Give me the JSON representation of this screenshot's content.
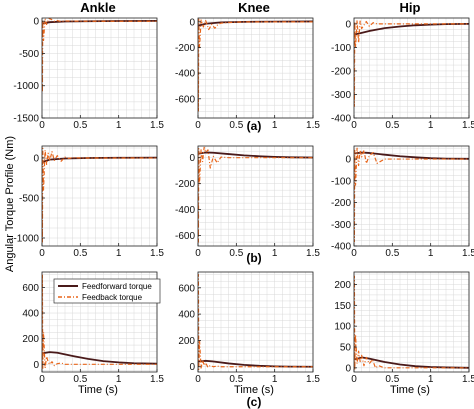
{
  "figure": {
    "ylabel": "Angular Torque Profile (Nm)",
    "xlabel": "Time (s)",
    "col_titles": [
      "Ankle",
      "Knee",
      "Hip"
    ],
    "row_labels": [
      "(a)",
      "(b)",
      "(c)"
    ],
    "legend": {
      "feedforward": "Feedforward torque",
      "feedback": "Feedback torque"
    },
    "colors": {
      "feedforward": "#4a1a1a",
      "feedback": "#e8651a",
      "grid": "#d9d9d9"
    }
  },
  "chart_data": [
    {
      "type": "line",
      "row": "(a)",
      "col": "Ankle",
      "xlim": [
        0,
        1.5
      ],
      "ylim": [
        -1500,
        50
      ],
      "xticks": [
        0,
        0.5,
        1,
        1.5
      ],
      "yticks": [
        0,
        -500,
        -1000,
        -1500
      ],
      "grid": true,
      "series": [
        {
          "name": "Feedforward torque",
          "x": [
            0,
            0.01,
            0.1,
            0.3,
            0.6,
            1.0,
            1.5
          ],
          "y": [
            -60,
            -35,
            -15,
            -4,
            0,
            3,
            5
          ]
        },
        {
          "name": "Feedback torque",
          "x": [
            0,
            0.005,
            0.01,
            0.02,
            0.04,
            0.06,
            0.09,
            0.12,
            0.16,
            0.2,
            0.25,
            0.3,
            0.4,
            0.6,
            1.0,
            1.5
          ],
          "y": [
            0,
            -1100,
            20,
            -300,
            40,
            -50,
            45,
            30,
            0,
            10,
            -5,
            5,
            2,
            0,
            0,
            0
          ]
        }
      ]
    },
    {
      "type": "line",
      "row": "(a)",
      "col": "Knee",
      "xlim": [
        0,
        1.5
      ],
      "ylim": [
        -750,
        30
      ],
      "xticks": [
        0,
        0.5,
        1,
        1.5
      ],
      "yticks": [
        0,
        -200,
        -400,
        -600
      ],
      "grid": true,
      "series": [
        {
          "name": "Feedforward torque",
          "x": [
            0,
            0.1,
            0.3,
            0.6,
            1.0,
            1.5
          ],
          "y": [
            -30,
            -15,
            -4,
            0,
            2,
            3
          ]
        },
        {
          "name": "Feedback torque",
          "x": [
            0,
            0.005,
            0.01,
            0.02,
            0.04,
            0.07,
            0.1,
            0.14,
            0.18,
            0.22,
            0.26,
            0.3,
            0.4,
            0.6,
            1.0,
            1.5
          ],
          "y": [
            0,
            -700,
            20,
            -200,
            15,
            -40,
            10,
            -60,
            -20,
            -50,
            -20,
            -10,
            -5,
            0,
            0,
            0
          ]
        }
      ]
    },
    {
      "type": "line",
      "row": "(a)",
      "col": "Hip",
      "xlim": [
        0,
        1.5
      ],
      "ylim": [
        -400,
        25
      ],
      "xticks": [
        0,
        0.5,
        1,
        1.5
      ],
      "yticks": [
        0,
        -100,
        -200,
        -300,
        -400
      ],
      "grid": true,
      "series": [
        {
          "name": "Feedforward torque",
          "x": [
            0,
            0.05,
            0.1,
            0.2,
            0.4,
            0.6,
            0.8,
            1.0,
            1.2,
            1.5
          ],
          "y": [
            -45,
            -42,
            -38,
            -30,
            -18,
            -11,
            -6,
            -3,
            -1,
            0
          ]
        },
        {
          "name": "Feedback torque",
          "x": [
            0,
            0.005,
            0.01,
            0.02,
            0.04,
            0.06,
            0.08,
            0.1,
            0.13,
            0.16,
            0.2,
            0.25,
            0.3,
            0.4,
            0.6,
            1.0,
            1.5
          ],
          "y": [
            0,
            -350,
            10,
            -100,
            15,
            -80,
            12,
            -20,
            -5,
            10,
            -10,
            5,
            0,
            0,
            0,
            0,
            0
          ]
        }
      ]
    },
    {
      "type": "line",
      "row": "(b)",
      "col": "Ankle",
      "xlim": [
        0,
        1.5
      ],
      "ylim": [
        -1100,
        150
      ],
      "xticks": [
        0,
        0.5,
        1,
        1.5
      ],
      "yticks": [
        0,
        -500,
        -1000
      ],
      "grid": true,
      "series": [
        {
          "name": "Feedforward torque",
          "x": [
            0,
            0.01,
            0.1,
            0.3,
            0.6,
            1.0,
            1.5
          ],
          "y": [
            -80,
            -50,
            -20,
            -6,
            0,
            3,
            5
          ]
        },
        {
          "name": "Feedback torque",
          "x": [
            0,
            0.005,
            0.01,
            0.02,
            0.04,
            0.06,
            0.08,
            0.1,
            0.13,
            0.16,
            0.2,
            0.25,
            0.3,
            0.35,
            0.4,
            0.5,
            0.7,
            1.0,
            1.5
          ],
          "y": [
            0,
            -1050,
            120,
            -400,
            100,
            -80,
            60,
            -40,
            80,
            -30,
            30,
            -40,
            10,
            -5,
            5,
            0,
            0,
            0,
            0
          ]
        }
      ]
    },
    {
      "type": "line",
      "row": "(b)",
      "col": "Knee",
      "xlim": [
        0,
        1.5
      ],
      "ylim": [
        -680,
        90
      ],
      "xticks": [
        0,
        0.5,
        1,
        1.5
      ],
      "yticks": [
        0,
        -200,
        -400,
        -600
      ],
      "grid": true,
      "series": [
        {
          "name": "Feedforward torque",
          "x": [
            0,
            0.05,
            0.1,
            0.2,
            0.4,
            0.6,
            0.8,
            1.0,
            1.2,
            1.5
          ],
          "y": [
            30,
            35,
            40,
            38,
            28,
            18,
            11,
            6,
            3,
            1
          ]
        },
        {
          "name": "Feedback torque",
          "x": [
            0,
            0.005,
            0.01,
            0.02,
            0.04,
            0.06,
            0.08,
            0.1,
            0.13,
            0.16,
            0.2,
            0.25,
            0.3,
            0.4,
            0.6,
            1.0,
            1.5
          ],
          "y": [
            0,
            -650,
            70,
            -200,
            60,
            -30,
            80,
            40,
            60,
            -80,
            10,
            -40,
            5,
            0,
            0,
            0,
            0
          ]
        }
      ]
    },
    {
      "type": "line",
      "row": "(b)",
      "col": "Hip",
      "xlim": [
        0,
        1.5
      ],
      "ylim": [
        -400,
        60
      ],
      "xticks": [
        0,
        0.5,
        1,
        1.5
      ],
      "yticks": [
        0,
        -100,
        -200,
        -300,
        -400
      ],
      "grid": true,
      "series": [
        {
          "name": "Feedforward torque",
          "x": [
            0,
            0.05,
            0.1,
            0.2,
            0.4,
            0.6,
            0.8,
            1.0,
            1.2,
            1.5
          ],
          "y": [
            25,
            28,
            30,
            28,
            20,
            13,
            8,
            4,
            2,
            1
          ]
        },
        {
          "name": "Feedback torque",
          "x": [
            0,
            0.005,
            0.01,
            0.02,
            0.04,
            0.06,
            0.08,
            0.1,
            0.13,
            0.16,
            0.2,
            0.25,
            0.3,
            0.4,
            0.6,
            1.0,
            1.5
          ],
          "y": [
            0,
            -380,
            40,
            -120,
            50,
            -30,
            40,
            10,
            40,
            -20,
            15,
            30,
            -20,
            0,
            0,
            0,
            0
          ]
        }
      ]
    },
    {
      "type": "line",
      "row": "(c)",
      "col": "Ankle",
      "xlim": [
        0,
        1.5
      ],
      "ylim": [
        -60,
        720
      ],
      "xticks": [
        0,
        0.5,
        1,
        1.5
      ],
      "yticks": [
        0,
        200,
        400,
        600
      ],
      "grid": true,
      "legend": "top-right",
      "series": [
        {
          "name": "Feedforward torque",
          "x": [
            0,
            0.05,
            0.1,
            0.2,
            0.4,
            0.6,
            0.8,
            1.0,
            1.2,
            1.5
          ],
          "y": [
            85,
            90,
            95,
            90,
            65,
            42,
            25,
            15,
            8,
            5
          ]
        },
        {
          "name": "Feedback torque",
          "x": [
            0,
            0.005,
            0.01,
            0.02,
            0.04,
            0.06,
            0.08,
            0.1,
            0.13,
            0.16,
            0.2,
            0.25,
            0.3,
            0.4,
            0.6,
            1.0,
            1.5
          ],
          "y": [
            0,
            700,
            -40,
            250,
            -30,
            60,
            20,
            0,
            20,
            -10,
            5,
            10,
            0,
            0,
            0,
            0,
            0
          ]
        }
      ]
    },
    {
      "type": "line",
      "row": "(c)",
      "col": "Knee",
      "xlim": [
        0,
        1.5
      ],
      "ylim": [
        -40,
        720
      ],
      "xticks": [
        0,
        0.5,
        1,
        1.5
      ],
      "yticks": [
        0,
        200,
        400,
        600
      ],
      "grid": true,
      "series": [
        {
          "name": "Feedforward torque",
          "x": [
            0,
            0.05,
            0.1,
            0.2,
            0.4,
            0.6,
            0.8,
            1.0,
            1.2,
            1.5
          ],
          "y": [
            40,
            42,
            45,
            40,
            25,
            14,
            7,
            3,
            1,
            0
          ]
        },
        {
          "name": "Feedback torque",
          "x": [
            0,
            0.005,
            0.01,
            0.02,
            0.04,
            0.06,
            0.08,
            0.1,
            0.13,
            0.16,
            0.2,
            0.25,
            0.3,
            0.4,
            0.6,
            1.0,
            1.5
          ],
          "y": [
            0,
            700,
            -20,
            200,
            -10,
            50,
            10,
            30,
            -5,
            10,
            0,
            5,
            0,
            0,
            0,
            0,
            0
          ]
        }
      ]
    },
    {
      "type": "line",
      "row": "(c)",
      "col": "Hip",
      "xlim": [
        0,
        1.5
      ],
      "ylim": [
        -10,
        230
      ],
      "xticks": [
        0,
        0.5,
        1,
        1.5
      ],
      "yticks": [
        0,
        50,
        100,
        150,
        200
      ],
      "grid": true,
      "series": [
        {
          "name": "Feedforward torque",
          "x": [
            0,
            0.05,
            0.1,
            0.2,
            0.4,
            0.6,
            0.8,
            1.0,
            1.2,
            1.5
          ],
          "y": [
            20,
            22,
            25,
            22,
            14,
            8,
            4,
            2,
            1,
            0
          ]
        },
        {
          "name": "Feedback torque",
          "x": [
            0,
            0.005,
            0.01,
            0.02,
            0.04,
            0.06,
            0.08,
            0.1,
            0.13,
            0.16,
            0.2,
            0.24,
            0.28,
            0.32,
            0.4,
            0.6,
            1.0,
            1.5
          ],
          "y": [
            0,
            220,
            -5,
            80,
            10,
            40,
            15,
            30,
            5,
            25,
            10,
            20,
            0,
            5,
            0,
            0,
            0,
            0
          ]
        }
      ]
    }
  ]
}
